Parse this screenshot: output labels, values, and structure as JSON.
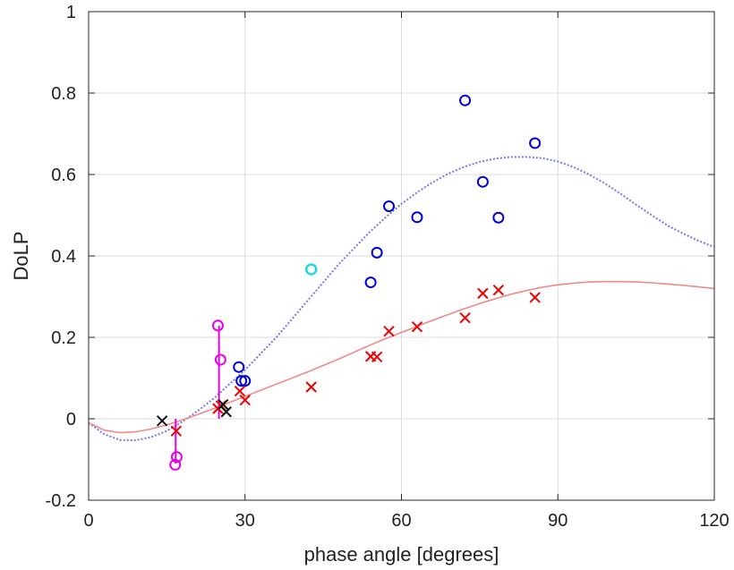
{
  "chart_data": {
    "type": "scatter",
    "xlabel": "phase angle [degrees]",
    "ylabel": "DoLP",
    "xlim": [
      0,
      120
    ],
    "ylim": [
      -0.2,
      1
    ],
    "xticks": [
      0,
      30,
      60,
      90,
      120
    ],
    "yticks": [
      -0.2,
      0,
      0.2,
      0.4,
      0.6,
      0.8,
      1
    ],
    "xtick_labels": [
      "0",
      "30",
      "60",
      "90",
      "120"
    ],
    "ytick_labels": [
      "-0.2",
      "0",
      "0.2",
      "0.4",
      "0.6",
      "0.8",
      "1"
    ],
    "grid": true,
    "series": [
      {
        "marker": "circle",
        "color": "#0000dd",
        "x": [
          28.8,
          29.3,
          30.0,
          42.7,
          54.1,
          55.3,
          57.6,
          63.0,
          72.2,
          75.6,
          78.6,
          85.6
        ],
        "y": [
          0.127,
          0.093,
          0.093,
          0.367,
          0.335,
          0.408,
          0.522,
          0.495,
          0.782,
          0.582,
          0.494,
          0.677
        ]
      },
      {
        "marker": "circle",
        "color": "#00e6e6",
        "x": [
          42.7
        ],
        "y": [
          0.367
        ]
      },
      {
        "marker": "circle",
        "color": "#e600e6",
        "x": [
          16.6,
          16.9,
          24.8,
          25.3
        ],
        "y": [
          -0.113,
          -0.094,
          0.229,
          0.145
        ]
      },
      {
        "marker": "x",
        "color": "#ee0000",
        "x": [
          16.8,
          24.8,
          25.4,
          29.0,
          30.0,
          42.7,
          54.1,
          55.3,
          57.6,
          63.0,
          72.2,
          75.6,
          78.6,
          85.6
        ],
        "y": [
          -0.03,
          0.025,
          0.032,
          0.068,
          0.046,
          0.078,
          0.153,
          0.152,
          0.215,
          0.226,
          0.248,
          0.308,
          0.316,
          0.298
        ]
      },
      {
        "marker": "x",
        "color": "#111111",
        "x": [
          14.1,
          25.8,
          26.4
        ],
        "y": [
          -0.005,
          0.035,
          0.017
        ]
      }
    ],
    "error_bars": {
      "color": "#e600e6",
      "bars": [
        {
          "x": 16.7,
          "y_low": -0.11,
          "y_high": 0.0
        },
        {
          "x": 25.0,
          "y_low": 0.0,
          "y_high": 0.229
        }
      ]
    },
    "fits": [
      {
        "style": "dotted",
        "color": "#7777ee",
        "x": [
          0,
          3,
          6,
          9,
          12,
          15,
          18,
          21,
          24,
          27,
          30,
          33,
          36,
          39,
          42,
          45,
          48,
          51,
          54,
          57,
          60,
          63,
          66,
          69,
          72,
          75,
          78,
          81,
          84,
          87,
          90,
          93,
          96,
          99,
          102,
          105,
          108,
          111,
          114,
          117,
          120
        ],
        "y": [
          -0.01,
          -0.038,
          -0.052,
          -0.053,
          -0.045,
          -0.03,
          -0.007,
          0.02,
          0.05,
          0.085,
          0.12,
          0.16,
          0.2,
          0.245,
          0.29,
          0.335,
          0.38,
          0.42,
          0.46,
          0.495,
          0.528,
          0.556,
          0.581,
          0.602,
          0.619,
          0.631,
          0.639,
          0.643,
          0.643,
          0.64,
          0.632,
          0.618,
          0.6,
          0.578,
          0.553,
          0.526,
          0.5,
          0.475,
          0.455,
          0.437,
          0.422
        ]
      },
      {
        "style": "solid",
        "color": "#f08a8a",
        "x": [
          0,
          3,
          6,
          9,
          12,
          15,
          18,
          21,
          24,
          27,
          30,
          33,
          36,
          39,
          42,
          45,
          48,
          51,
          54,
          57,
          60,
          63,
          66,
          69,
          72,
          75,
          78,
          81,
          84,
          87,
          90,
          93,
          96,
          99,
          102,
          105,
          108,
          111,
          114,
          117,
          120
        ],
        "y": [
          -0.01,
          -0.028,
          -0.034,
          -0.032,
          -0.025,
          -0.015,
          -0.003,
          0.011,
          0.025,
          0.04,
          0.055,
          0.07,
          0.085,
          0.1,
          0.115,
          0.131,
          0.147,
          0.164,
          0.181,
          0.197,
          0.212,
          0.227,
          0.242,
          0.256,
          0.27,
          0.283,
          0.295,
          0.306,
          0.315,
          0.323,
          0.329,
          0.333,
          0.336,
          0.337,
          0.337,
          0.336,
          0.334,
          0.331,
          0.328,
          0.324,
          0.32
        ]
      }
    ]
  }
}
